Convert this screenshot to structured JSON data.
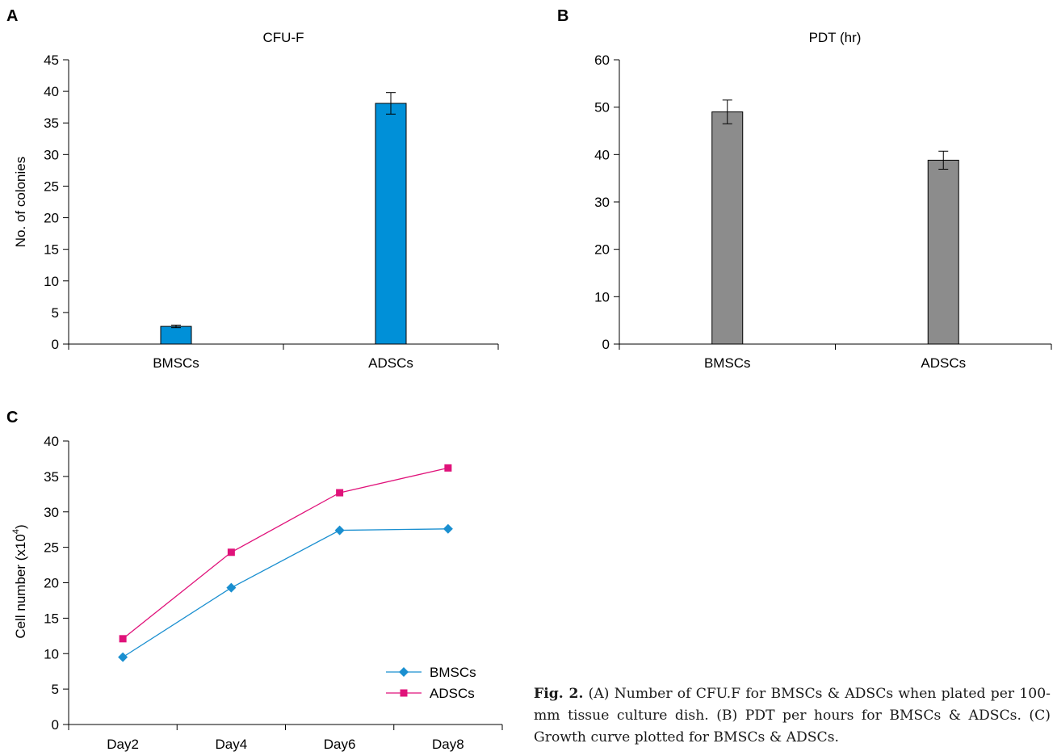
{
  "panels": {
    "a": "A",
    "b": "B",
    "c": "C"
  },
  "caption": {
    "prefix": "Fig. 2.",
    "text": " (A) Number of CFU.F for BMSCs & ADSCs when plated per 100-mm tissue culture dish. (B) PDT per hours for BMSCs & ADSCs. (C) Growth curve plotted for BMSCs & ADSCs."
  },
  "colors": {
    "blue_bar": "#0090d8",
    "gray_bar": "#8c8c8c",
    "bmscs_line": "#1a8fd0",
    "adscs_line": "#e0127a"
  },
  "chart_data": [
    {
      "id": "A",
      "type": "bar",
      "title": "CFU-F",
      "xlabel": "",
      "ylabel": "No. of colonies",
      "categories": [
        "BMSCs",
        "ADSCs"
      ],
      "values": [
        2.8,
        38.1
      ],
      "errors": [
        0.2,
        1.7
      ],
      "ylim": [
        0,
        45
      ],
      "yticks": [
        0,
        5,
        10,
        15,
        20,
        25,
        30,
        35,
        40,
        45
      ],
      "grid": false,
      "color": "#0090d8"
    },
    {
      "id": "B",
      "type": "bar",
      "title": "PDT (hr)",
      "xlabel": "",
      "ylabel": "",
      "categories": [
        "BMSCs",
        "ADSCs"
      ],
      "values": [
        49,
        38.8
      ],
      "errors": [
        2.5,
        1.9
      ],
      "ylim": [
        0,
        60
      ],
      "yticks": [
        0,
        10,
        20,
        30,
        40,
        50,
        60
      ],
      "grid": false,
      "color": "#8c8c8c"
    },
    {
      "id": "C",
      "type": "line",
      "title": "",
      "xlabel": "",
      "ylabel": "Cell number (x10",
      "ylabel_sup": "4",
      "ylabel_end": ")",
      "categories": [
        "Day2",
        "Day4",
        "Day6",
        "Day8"
      ],
      "series": [
        {
          "name": "BMSCs",
          "values": [
            9.5,
            19.3,
            27.4,
            27.6
          ],
          "marker": "diamond",
          "color": "#1a8fd0"
        },
        {
          "name": "ADSCs",
          "values": [
            12.1,
            24.3,
            32.7,
            36.2
          ],
          "marker": "square",
          "color": "#e0127a"
        }
      ],
      "ylim": [
        0,
        40
      ],
      "yticks": [
        0,
        5,
        10,
        15,
        20,
        25,
        30,
        35,
        40
      ],
      "grid": false,
      "legend": "bottom-right"
    }
  ]
}
